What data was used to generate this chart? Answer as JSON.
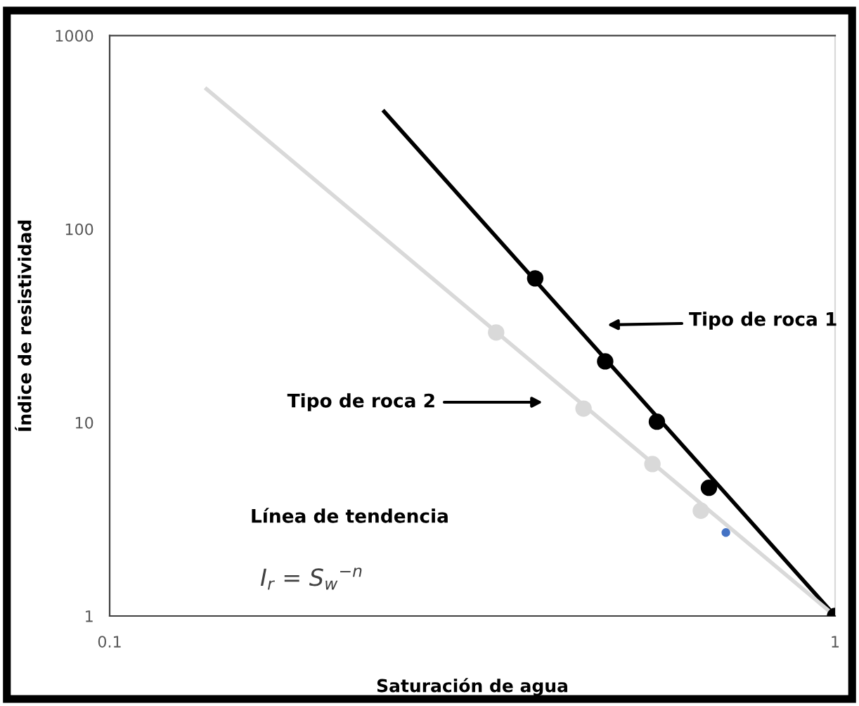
{
  "chart_data": {
    "type": "scatter",
    "xlabel": "Saturación de agua",
    "ylabel": "Índice de resistividad",
    "log": "xy",
    "xlim": [
      0.1,
      1
    ],
    "ylim": [
      1,
      1000
    ],
    "xticks": [
      0.1,
      1
    ],
    "yticks": [
      1,
      10,
      100,
      1000
    ],
    "grid": false,
    "marker": "circle",
    "series": [
      {
        "type": "line",
        "color": "#000000",
        "x": [
          0.239,
          1
        ],
        "values": [
          405,
          1
        ],
        "marker": "none"
      },
      {
        "type": "line",
        "color": "#d9d9d9",
        "x": [
          0.136,
          1
        ],
        "values": [
          529,
          1
        ],
        "marker": "none"
      },
      {
        "color": "#d9d9d9",
        "x": [
          0.341,
          0.45,
          0.56,
          0.653
        ],
        "values": [
          29.2,
          11.8,
          6.1,
          3.5
        ]
      },
      {
        "color": "#000000",
        "x": [
          0.386,
          0.482,
          0.568,
          0.67,
          1
        ],
        "values": [
          55.6,
          20.7,
          10.1,
          4.6,
          1
        ]
      },
      {
        "color": "#4472c4",
        "x": [
          0.707
        ],
        "values": [
          2.7
        ]
      }
    ],
    "annotations": [
      "Tipo de roca 1",
      "Tipo de roca 2",
      "Línea de tendencia",
      "I$_{r}$ = S$_{w}$$^{−n}$"
    ]
  }
}
